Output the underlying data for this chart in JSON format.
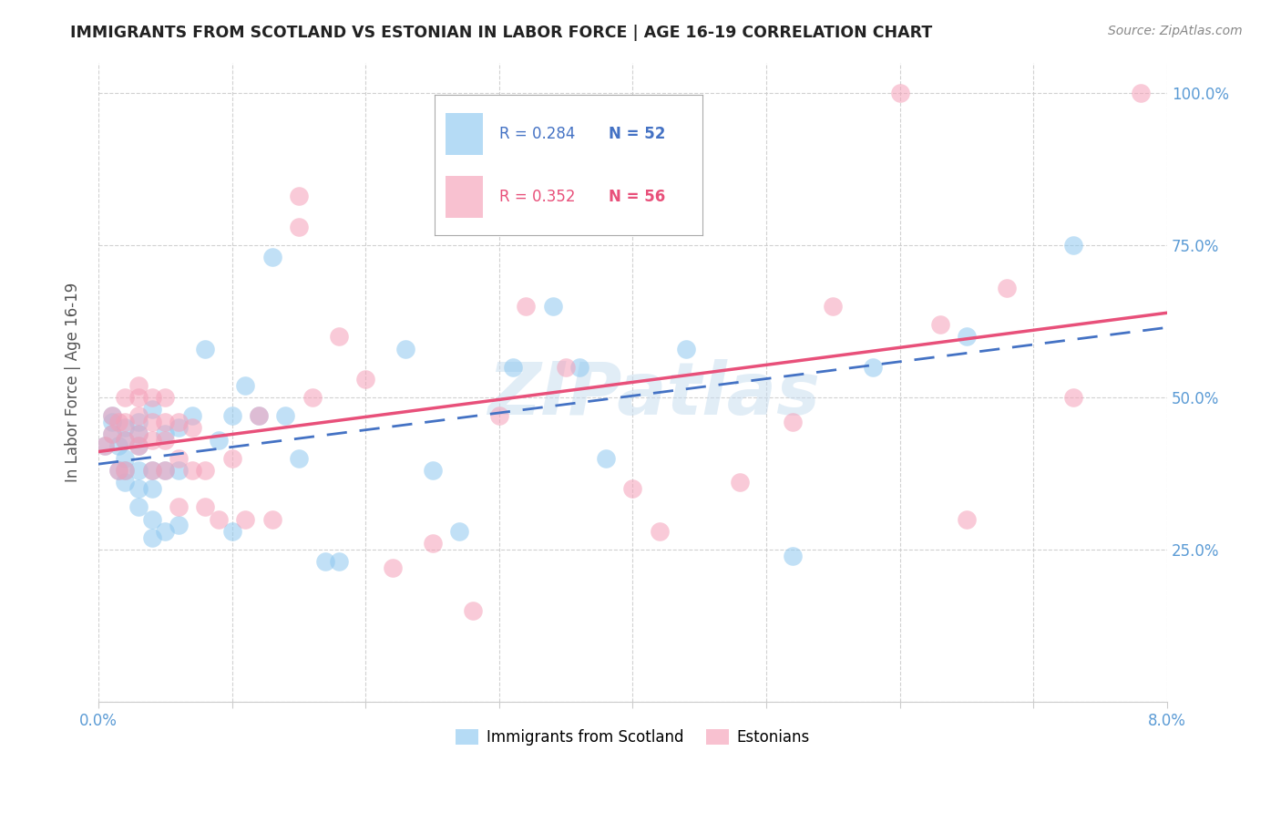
{
  "title": "IMMIGRANTS FROM SCOTLAND VS ESTONIAN IN LABOR FORCE | AGE 16-19 CORRELATION CHART",
  "source": "Source: ZipAtlas.com",
  "ylabel": "In Labor Force | Age 16-19",
  "xlim": [
    0.0,
    0.08
  ],
  "ylim": [
    0.0,
    1.05
  ],
  "scotland_color": "#8EC8F0",
  "estonian_color": "#F5A0B8",
  "scotland_line_color": "#4472C4",
  "estonian_line_color": "#E8507A",
  "title_color": "#222222",
  "source_color": "#888888",
  "tick_color": "#5B9BD5",
  "ylabel_color": "#555555",
  "watermark": "ZIPatlas",
  "watermark_color": "#C5DCEF",
  "legend_R_sc": "R = 0.284",
  "legend_N_sc": "N = 52",
  "legend_R_et": "R = 0.352",
  "legend_N_et": "N = 56",
  "sc_label": "Immigrants from Scotland",
  "et_label": "Estonians",
  "scotland_x": [
    0.0005,
    0.001,
    0.001,
    0.001,
    0.0015,
    0.0015,
    0.002,
    0.002,
    0.002,
    0.002,
    0.002,
    0.003,
    0.003,
    0.003,
    0.003,
    0.003,
    0.003,
    0.004,
    0.004,
    0.004,
    0.004,
    0.004,
    0.005,
    0.005,
    0.005,
    0.006,
    0.006,
    0.006,
    0.007,
    0.008,
    0.009,
    0.01,
    0.01,
    0.011,
    0.012,
    0.013,
    0.014,
    0.015,
    0.017,
    0.018,
    0.023,
    0.025,
    0.027,
    0.031,
    0.034,
    0.036,
    0.038,
    0.044,
    0.052,
    0.058,
    0.065,
    0.073
  ],
  "scotland_y": [
    0.42,
    0.44,
    0.46,
    0.47,
    0.38,
    0.42,
    0.36,
    0.38,
    0.4,
    0.43,
    0.45,
    0.32,
    0.35,
    0.38,
    0.42,
    0.44,
    0.46,
    0.27,
    0.3,
    0.35,
    0.38,
    0.48,
    0.28,
    0.38,
    0.44,
    0.29,
    0.38,
    0.45,
    0.47,
    0.58,
    0.43,
    0.28,
    0.47,
    0.52,
    0.47,
    0.73,
    0.47,
    0.4,
    0.23,
    0.23,
    0.58,
    0.38,
    0.28,
    0.55,
    0.65,
    0.55,
    0.4,
    0.58,
    0.24,
    0.55,
    0.6,
    0.75
  ],
  "estonian_x": [
    0.0005,
    0.001,
    0.001,
    0.0015,
    0.0015,
    0.002,
    0.002,
    0.002,
    0.002,
    0.003,
    0.003,
    0.003,
    0.003,
    0.003,
    0.004,
    0.004,
    0.004,
    0.004,
    0.005,
    0.005,
    0.005,
    0.005,
    0.006,
    0.006,
    0.006,
    0.007,
    0.007,
    0.008,
    0.008,
    0.009,
    0.01,
    0.011,
    0.012,
    0.013,
    0.015,
    0.015,
    0.016,
    0.018,
    0.02,
    0.022,
    0.025,
    0.028,
    0.03,
    0.032,
    0.035,
    0.04,
    0.042,
    0.048,
    0.052,
    0.055,
    0.06,
    0.063,
    0.065,
    0.068,
    0.073,
    0.078
  ],
  "estonian_y": [
    0.42,
    0.44,
    0.47,
    0.38,
    0.46,
    0.38,
    0.43,
    0.46,
    0.5,
    0.42,
    0.44,
    0.47,
    0.5,
    0.52,
    0.38,
    0.43,
    0.46,
    0.5,
    0.38,
    0.43,
    0.46,
    0.5,
    0.32,
    0.4,
    0.46,
    0.38,
    0.45,
    0.32,
    0.38,
    0.3,
    0.4,
    0.3,
    0.47,
    0.3,
    0.83,
    0.78,
    0.5,
    0.6,
    0.53,
    0.22,
    0.26,
    0.15,
    0.47,
    0.65,
    0.55,
    0.35,
    0.28,
    0.36,
    0.46,
    0.65,
    1.0,
    0.62,
    0.3,
    0.68,
    0.5,
    1.0
  ]
}
